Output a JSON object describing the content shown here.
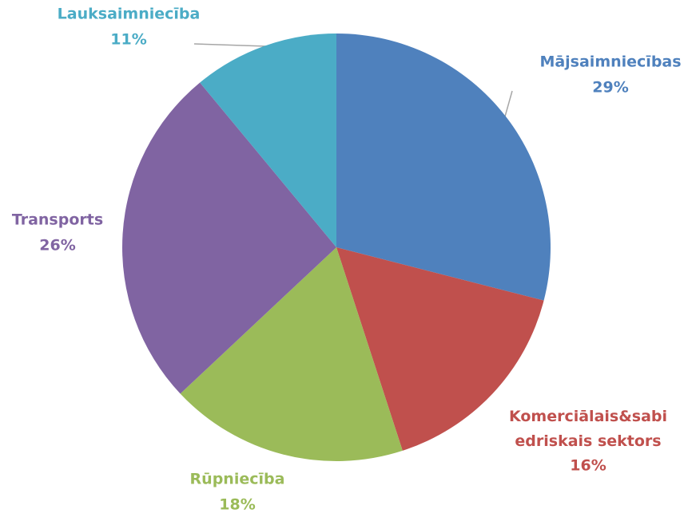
{
  "chart_data": {
    "type": "pie",
    "categories": [
      "Mājsaimniecības",
      "Komerciālais&sabiedriskais sektors",
      "Rūpniecība",
      "Transports",
      "Lauksaimniecība"
    ],
    "values": [
      29,
      16,
      18,
      26,
      11
    ],
    "value_labels": [
      "29%",
      "16%",
      "18%",
      "26%",
      "11%"
    ],
    "colors": [
      "#4f81bd",
      "#c0504d",
      "#9bbb59",
      "#8064a2",
      "#4bacc6"
    ]
  }
}
